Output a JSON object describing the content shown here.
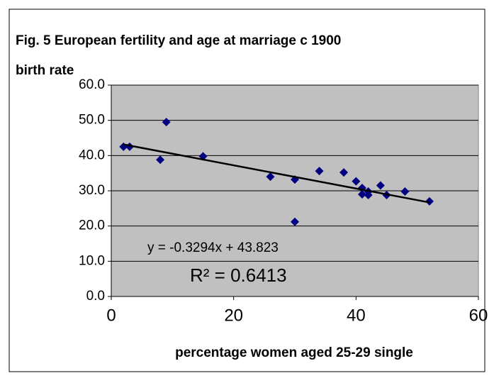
{
  "chart_data": {
    "type": "scatter",
    "title": "Fig. 5 European fertility and age at marriage c 1900",
    "y_label": "birth rate",
    "x_label": "percentage women aged 25-29 single",
    "x": [
      2,
      3,
      8,
      9,
      15,
      26,
      30,
      30,
      34,
      38,
      40,
      41,
      41,
      42,
      42,
      44,
      45,
      48,
      52
    ],
    "values": [
      42.5,
      42.5,
      38.8,
      49.5,
      39.8,
      34,
      33.2,
      21.2,
      35.6,
      35.2,
      32.7,
      30.8,
      29,
      29.8,
      28.8,
      31.5,
      28.8,
      29.8,
      27
    ],
    "color": "#000080",
    "xlim": [
      0,
      60
    ],
    "xticks": [
      0,
      20,
      40,
      60
    ],
    "ylim": [
      0,
      60
    ],
    "yticks": [
      {
        "value": 0,
        "label": "0.0"
      },
      {
        "value": 10,
        "label": "10.0"
      },
      {
        "value": 20,
        "label": "20.0"
      },
      {
        "value": 30,
        "label": "30.0"
      },
      {
        "value": 40,
        "label": "40.0"
      },
      {
        "value": 50,
        "label": "50.0"
      },
      {
        "value": 60,
        "label": "60.0"
      }
    ],
    "grid": true,
    "trendline": {
      "slope": -0.3294,
      "intercept": 43.823,
      "equation": "y = -0.3294x + 43.823",
      "r2_label": "R² = 0.6413"
    }
  }
}
